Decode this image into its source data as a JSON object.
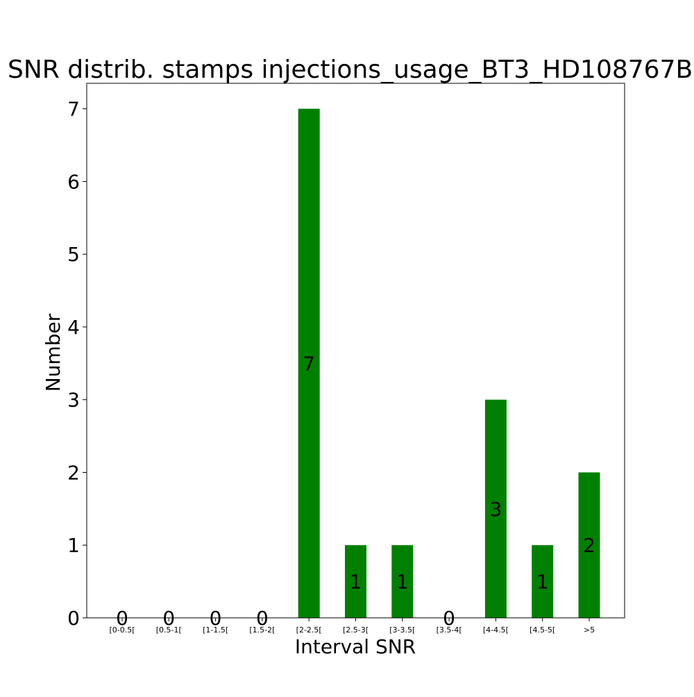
{
  "chart_data": {
    "type": "bar",
    "title": "SNR distrib. stamps injections_usage_BT3_HD108767B",
    "xlabel": "Interval SNR",
    "ylabel": "Number",
    "categories": [
      "[0-0.5[",
      "[0.5-1[",
      "[1-1.5[",
      "[1.5-2[",
      "[2-2.5[",
      "[2.5-3[",
      "[3-3.5[",
      "[3.5-4[",
      "[4-4.5[",
      "[4.5-5[",
      ">5"
    ],
    "values": [
      0,
      0,
      0,
      0,
      7,
      1,
      1,
      0,
      3,
      1,
      2
    ],
    "data_labels": [
      "0",
      "0",
      "0",
      "0",
      "7",
      "1",
      "1",
      "0",
      "3",
      "1",
      "2"
    ],
    "yticks": [
      "0",
      "1",
      "2",
      "3",
      "4",
      "5",
      "6",
      "7"
    ],
    "ylim": [
      0,
      7.35
    ],
    "bar_color": "#008000",
    "grid": false,
    "legend": "none"
  }
}
